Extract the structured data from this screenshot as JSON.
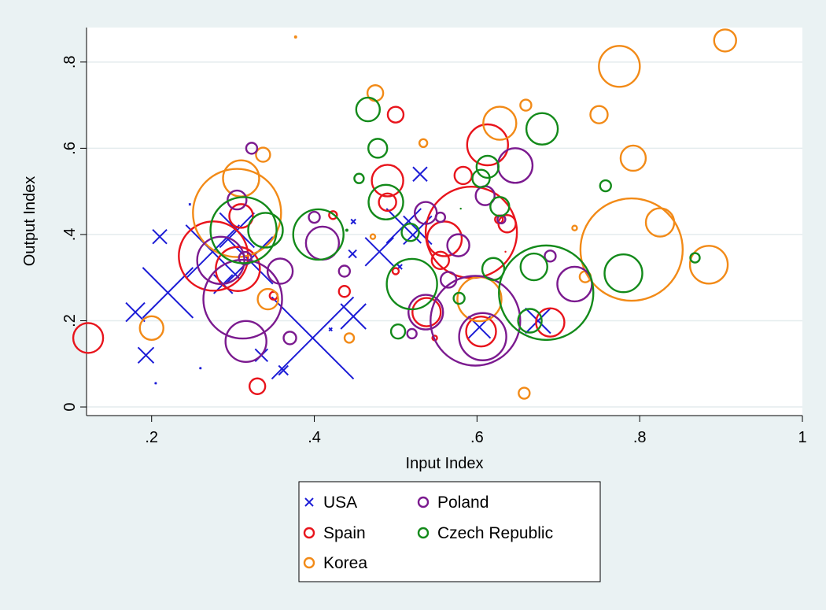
{
  "chart_data": {
    "type": "scatter",
    "xlabel": "Input Index",
    "ylabel": "Output Index",
    "xlim": [
      0.12,
      1.0
    ],
    "ylim": [
      -0.02,
      0.88
    ],
    "x_ticks": [
      0.2,
      0.4,
      0.6,
      0.8,
      1.0
    ],
    "x_tick_labels": [
      ".2",
      ".4",
      ".6",
      ".8",
      "1"
    ],
    "y_ticks": [
      0.0,
      0.2,
      0.4,
      0.6,
      0.8
    ],
    "y_tick_labels": [
      "0",
      ".2",
      ".4",
      ".6",
      ".8"
    ],
    "grid": "horizontal",
    "legend_placement": "bottom",
    "marker_size_encoding": "bubble",
    "series": [
      {
        "name": "USA",
        "marker": "x",
        "color": "#1c1cd6",
        "points": [
          [
            0.18,
            0.22,
            12
          ],
          [
            0.193,
            0.12,
            10
          ],
          [
            0.21,
            0.395,
            9
          ],
          [
            0.22,
            0.265,
            32
          ],
          [
            0.205,
            0.055,
            1
          ],
          [
            0.247,
            0.47,
            1
          ],
          [
            0.26,
            0.09,
            1
          ],
          [
            0.275,
            0.36,
            34
          ],
          [
            0.288,
            0.285,
            12
          ],
          [
            0.305,
            0.41,
            22
          ],
          [
            0.32,
            0.34,
            30
          ],
          [
            0.335,
            0.12,
            8
          ],
          [
            0.362,
            0.085,
            6
          ],
          [
            0.398,
            0.16,
            52
          ],
          [
            0.42,
            0.18,
            2
          ],
          [
            0.448,
            0.21,
            16
          ],
          [
            0.447,
            0.355,
            5
          ],
          [
            0.448,
            0.43,
            3
          ],
          [
            0.48,
            0.36,
            18
          ],
          [
            0.505,
            0.325,
            3
          ],
          [
            0.51,
            0.42,
            22
          ],
          [
            0.527,
            0.41,
            18
          ],
          [
            0.53,
            0.54,
            9
          ],
          [
            0.603,
            0.185,
            14
          ],
          [
            0.675,
            0.2,
            16
          ]
        ]
      },
      {
        "name": "Spain",
        "marker": "circle",
        "color": "#e8141c",
        "points": [
          [
            0.122,
            0.16,
            19
          ],
          [
            0.276,
            0.35,
            44
          ],
          [
            0.306,
            0.32,
            28
          ],
          [
            0.31,
            0.443,
            15
          ],
          [
            0.33,
            0.048,
            10
          ],
          [
            0.35,
            0.258,
            5
          ],
          [
            0.423,
            0.445,
            5
          ],
          [
            0.437,
            0.268,
            7
          ],
          [
            0.5,
            0.315,
            4
          ],
          [
            0.5,
            0.678,
            10
          ],
          [
            0.49,
            0.525,
            20
          ],
          [
            0.49,
            0.475,
            11
          ],
          [
            0.538,
            0.22,
            18
          ],
          [
            0.548,
            0.16,
            3
          ],
          [
            0.555,
            0.34,
            11
          ],
          [
            0.56,
            0.39,
            22
          ],
          [
            0.583,
            0.537,
            11
          ],
          [
            0.593,
            0.405,
            58
          ],
          [
            0.605,
            0.175,
            19
          ],
          [
            0.613,
            0.608,
            26
          ],
          [
            0.627,
            0.435,
            5
          ],
          [
            0.637,
            0.425,
            11
          ],
          [
            0.635,
            0.36,
            1
          ],
          [
            0.69,
            0.196,
            18
          ]
        ]
      },
      {
        "name": "Korea",
        "marker": "circle",
        "color": "#f28a17",
        "points": [
          [
            0.2,
            0.183,
            15
          ],
          [
            0.305,
            0.45,
            56
          ],
          [
            0.31,
            0.53,
            23
          ],
          [
            0.337,
            0.585,
            9
          ],
          [
            0.343,
            0.25,
            13
          ],
          [
            0.377,
            0.858,
            2
          ],
          [
            0.443,
            0.16,
            6
          ],
          [
            0.472,
            0.395,
            3
          ],
          [
            0.475,
            0.728,
            10
          ],
          [
            0.534,
            0.612,
            5
          ],
          [
            0.603,
            0.25,
            28
          ],
          [
            0.628,
            0.658,
            21
          ],
          [
            0.66,
            0.7,
            7
          ],
          [
            0.658,
            0.032,
            7
          ],
          [
            0.72,
            0.415,
            3
          ],
          [
            0.733,
            0.302,
            7
          ],
          [
            0.75,
            0.678,
            11
          ],
          [
            0.775,
            0.79,
            26
          ],
          [
            0.792,
            0.577,
            16
          ],
          [
            0.79,
            0.365,
            65
          ],
          [
            0.825,
            0.428,
            18
          ],
          [
            0.885,
            0.33,
            24
          ],
          [
            0.905,
            0.85,
            14
          ]
        ]
      },
      {
        "name": "Poland",
        "marker": "circle",
        "color": "#7b1a8f",
        "points": [
          [
            0.285,
            0.34,
            30
          ],
          [
            0.305,
            0.48,
            12
          ],
          [
            0.312,
            0.25,
            50
          ],
          [
            0.316,
            0.152,
            26
          ],
          [
            0.315,
            0.345,
            8
          ],
          [
            0.323,
            0.6,
            7
          ],
          [
            0.358,
            0.315,
            16
          ],
          [
            0.37,
            0.16,
            8
          ],
          [
            0.4,
            0.44,
            7
          ],
          [
            0.41,
            0.38,
            21
          ],
          [
            0.437,
            0.315,
            7
          ],
          [
            0.52,
            0.17,
            6
          ],
          [
            0.537,
            0.22,
            22
          ],
          [
            0.537,
            0.45,
            14
          ],
          [
            0.555,
            0.44,
            6
          ],
          [
            0.565,
            0.295,
            10
          ],
          [
            0.577,
            0.375,
            14
          ],
          [
            0.598,
            0.2,
            57
          ],
          [
            0.607,
            0.163,
            30
          ],
          [
            0.61,
            0.49,
            12
          ],
          [
            0.63,
            0.435,
            5
          ],
          [
            0.647,
            0.56,
            22
          ],
          [
            0.69,
            0.35,
            7
          ],
          [
            0.72,
            0.285,
            22
          ]
        ]
      },
      {
        "name": "Czech Republic",
        "marker": "circle",
        "color": "#138a1a",
        "points": [
          [
            0.313,
            0.41,
            42
          ],
          [
            0.34,
            0.41,
            22
          ],
          [
            0.405,
            0.4,
            32
          ],
          [
            0.44,
            0.41,
            2
          ],
          [
            0.455,
            0.53,
            6
          ],
          [
            0.466,
            0.69,
            15
          ],
          [
            0.478,
            0.6,
            12
          ],
          [
            0.488,
            0.475,
            22
          ],
          [
            0.503,
            0.175,
            9
          ],
          [
            0.518,
            0.405,
            11
          ],
          [
            0.52,
            0.285,
            32
          ],
          [
            0.578,
            0.252,
            7
          ],
          [
            0.58,
            0.46,
            1
          ],
          [
            0.605,
            0.53,
            11
          ],
          [
            0.613,
            0.557,
            14
          ],
          [
            0.62,
            0.32,
            14
          ],
          [
            0.628,
            0.465,
            12
          ],
          [
            0.665,
            0.2,
            15
          ],
          [
            0.67,
            0.325,
            17
          ],
          [
            0.68,
            0.645,
            20
          ],
          [
            0.685,
            0.265,
            60
          ],
          [
            0.758,
            0.513,
            7
          ],
          [
            0.78,
            0.31,
            24
          ],
          [
            0.868,
            0.346,
            6
          ]
        ]
      }
    ],
    "legend": {
      "entries": [
        {
          "label": "USA",
          "marker": "x",
          "color": "#1c1cd6"
        },
        {
          "label": "Poland",
          "marker": "circle",
          "color": "#7b1a8f"
        },
        {
          "label": "Spain",
          "marker": "circle",
          "color": "#e8141c"
        },
        {
          "label": "Czech Republic",
          "marker": "circle",
          "color": "#138a1a"
        },
        {
          "label": "Korea",
          "marker": "circle",
          "color": "#f28a17"
        }
      ]
    }
  }
}
